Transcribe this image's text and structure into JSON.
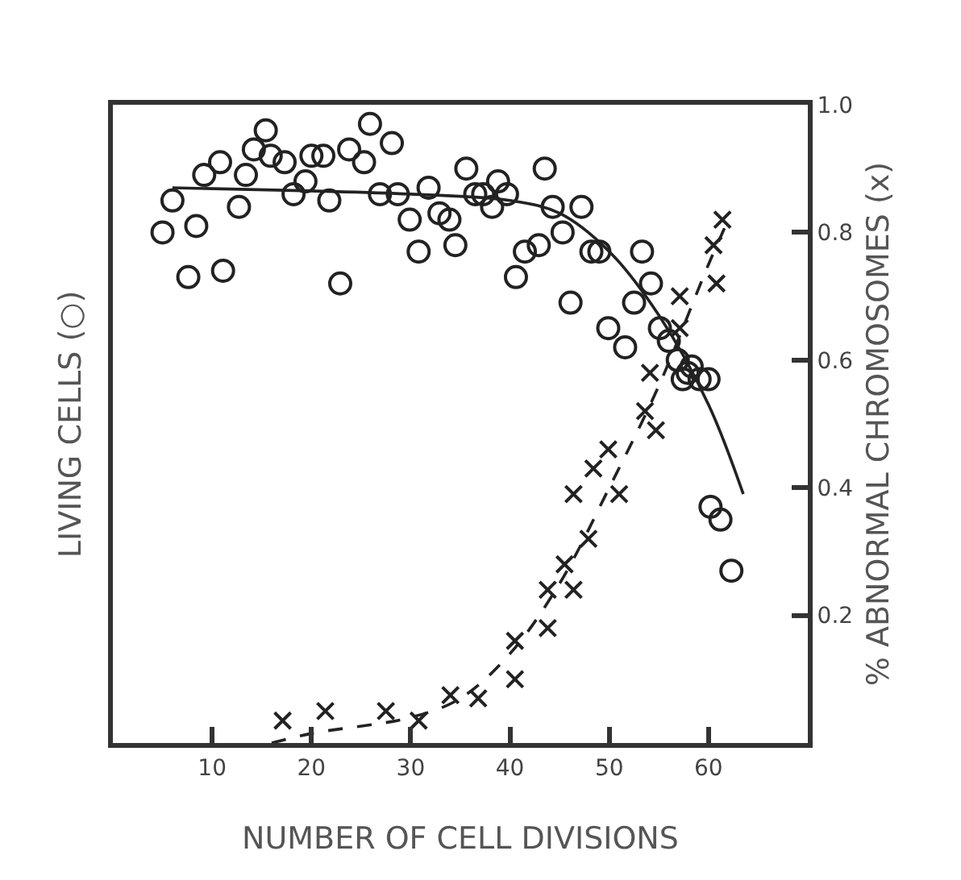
{
  "chart_data": {
    "type": "scatter",
    "xlabel": "NUMBER OF CELL DIVISIONS",
    "ylabel": "LIVING CELLS (○)",
    "y2label": "% ABNORMAL CHROMOSOMES (x)",
    "xlim": [
      0,
      70
    ],
    "xticks": [
      10,
      20,
      30,
      40,
      50,
      60
    ],
    "y2lim": [
      0,
      1.0
    ],
    "y2ticks": [
      0.2,
      0.4,
      0.6,
      0.8,
      {
        "value": 1.0,
        "label": "1.0"
      }
    ],
    "series": [
      {
        "axis": "y2",
        "marker": "circle",
        "color": "#222222",
        "x": [
          5,
          6,
          7.6,
          8.4,
          9.2,
          10.8,
          11.1,
          12.7,
          13.4,
          14.2,
          15.4,
          15.9,
          17.3,
          18.2,
          19.4,
          20,
          21.2,
          21.8,
          22.9,
          23.8,
          25.3,
          25.9,
          26.9,
          28.1,
          28.7,
          29.9,
          30.8,
          31.8,
          32.9,
          33.9,
          34.5,
          35.6,
          36.5,
          37.3,
          38.2,
          38.8,
          39.7,
          40.6,
          41.5,
          42.9,
          43.5,
          44.3,
          45.3,
          46.1,
          47.2,
          48.2,
          49.0,
          49.9,
          51.6,
          52.5,
          53.3,
          54.2,
          55.1,
          56.0,
          56.9,
          57.4,
          57.9,
          58.3,
          59.1,
          60,
          60.2,
          61.2,
          62.3
        ],
        "values": [
          0.8,
          0.85,
          0.73,
          0.81,
          0.89,
          0.91,
          0.74,
          0.84,
          0.89,
          0.93,
          0.96,
          0.92,
          0.91,
          0.86,
          0.88,
          0.92,
          0.92,
          0.85,
          0.72,
          0.93,
          0.91,
          0.97,
          0.86,
          0.94,
          0.86,
          0.82,
          0.77,
          0.87,
          0.83,
          0.82,
          0.78,
          0.9,
          0.86,
          0.86,
          0.84,
          0.88,
          0.86,
          0.73,
          0.77,
          0.78,
          0.9,
          0.84,
          0.8,
          0.69,
          0.84,
          0.77,
          0.77,
          0.65,
          0.62,
          0.69,
          0.77,
          0.72,
          0.65,
          0.63,
          0.6,
          0.57,
          0.58,
          0.59,
          0.57,
          0.57,
          0.37,
          0.35,
          0.27
        ]
      },
      {
        "type": "line",
        "axis": "y2",
        "marker": "none",
        "line_style": "solid",
        "color": "#222222",
        "x": [
          6,
          20,
          30,
          40,
          45,
          50,
          55,
          60,
          63.5
        ],
        "values": [
          0.87,
          0.865,
          0.86,
          0.85,
          0.83,
          0.77,
          0.67,
          0.53,
          0.39
        ]
      },
      {
        "axis": "y2",
        "marker": "cross",
        "color": "#222222",
        "x": [
          17.1,
          21.4,
          27.5,
          30.8,
          34,
          36.8,
          40.5,
          40.5,
          43.8,
          43.8,
          46.4,
          45.5,
          47.9,
          46.4,
          48.4,
          51,
          49.9,
          54.7,
          53.6,
          54.1,
          57.1,
          57.1,
          60.8,
          60.5,
          61.4
        ],
        "values": [
          0.035,
          0.05,
          0.05,
          0.035,
          0.075,
          0.07,
          0.16,
          0.1,
          0.18,
          0.24,
          0.24,
          0.28,
          0.32,
          0.39,
          0.43,
          0.39,
          0.46,
          0.49,
          0.52,
          0.58,
          0.65,
          0.7,
          0.72,
          0.78,
          0.82
        ]
      },
      {
        "type": "line",
        "axis": "y2",
        "marker": "none",
        "line_style": "dashed",
        "color": "#222222",
        "x": [
          16,
          20,
          30,
          35,
          40,
          45,
          50,
          55,
          60,
          62
        ],
        "values": [
          0.0,
          0.015,
          0.04,
          0.07,
          0.14,
          0.25,
          0.4,
          0.56,
          0.75,
          0.82
        ]
      }
    ]
  }
}
